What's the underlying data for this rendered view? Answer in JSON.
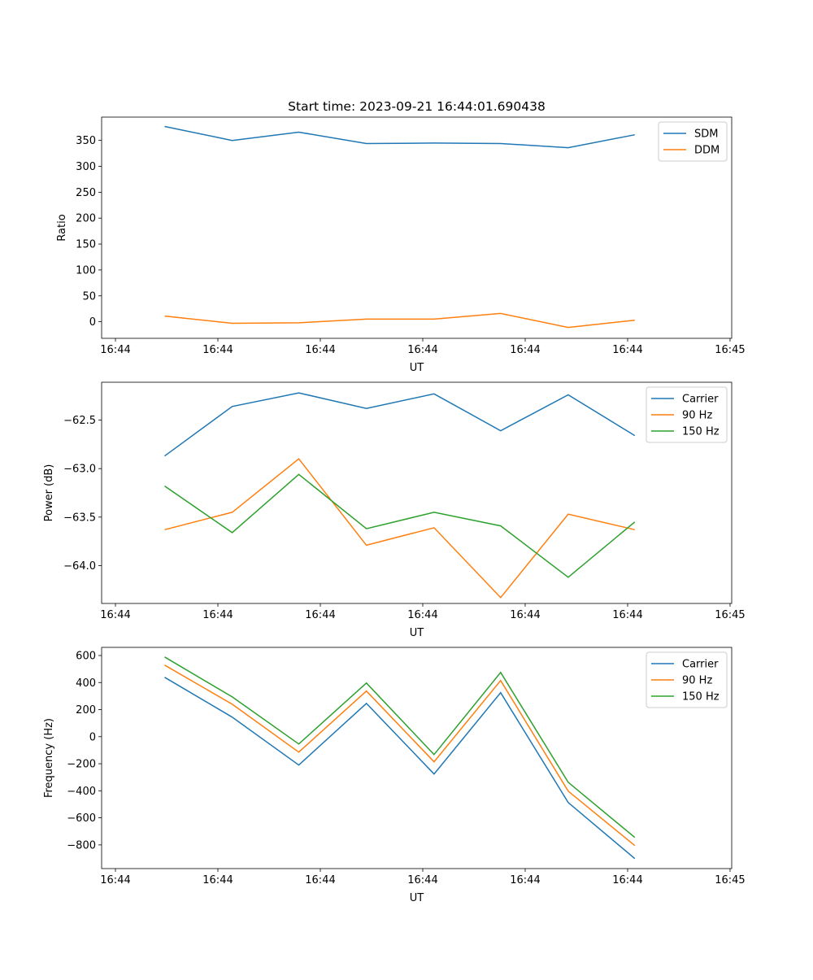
{
  "chart_data": [
    {
      "type": "line",
      "title": "Start time: 2023-09-21 16:44:01.690438",
      "xlabel": "UT",
      "ylabel": "Ratio",
      "x_ticks": [
        0,
        1,
        2,
        3,
        4,
        5,
        6
      ],
      "x_tick_labels": [
        "16:44",
        "16:44",
        "16:44",
        "16:44",
        "16:44",
        "16:44",
        "16:45"
      ],
      "xlim": [
        -0.135,
        6.016
      ],
      "ylim": [
        -32,
        395
      ],
      "y_ticks": [
        0,
        50,
        100,
        150,
        200,
        250,
        300,
        350
      ],
      "x": [
        0.48,
        1.14,
        1.79,
        2.45,
        3.11,
        3.76,
        4.42,
        5.07
      ],
      "legend": "top-right",
      "series": [
        {
          "name": "SDM",
          "color": "#1f77b4",
          "values": [
            377,
            350,
            366,
            344,
            345,
            344,
            336,
            361
          ]
        },
        {
          "name": "DDM",
          "color": "#ff7f0e",
          "values": [
            11,
            -3,
            -2,
            5,
            5,
            16,
            -11,
            3
          ]
        }
      ]
    },
    {
      "type": "line",
      "title": "",
      "xlabel": "UT",
      "ylabel": "Power (dB)",
      "x_ticks": [
        0,
        1,
        2,
        3,
        4,
        5,
        6
      ],
      "x_tick_labels": [
        "16:44",
        "16:44",
        "16:44",
        "16:44",
        "16:44",
        "16:44",
        "16:45"
      ],
      "xlim": [
        -0.135,
        6.016
      ],
      "ylim": [
        -64.39,
        -62.11
      ],
      "y_ticks": [
        -64.0,
        -63.5,
        -63.0,
        -62.5
      ],
      "y_tick_labels": [
        "−64.0",
        "−63.5",
        "−63.0",
        "−62.5"
      ],
      "x": [
        0.48,
        1.14,
        1.79,
        2.45,
        3.11,
        3.76,
        4.42,
        5.07
      ],
      "legend": "top-right",
      "series": [
        {
          "name": "Carrier",
          "color": "#1f77b4",
          "values": [
            -62.87,
            -62.36,
            -62.22,
            -62.38,
            -62.23,
            -62.61,
            -62.24,
            -62.66
          ]
        },
        {
          "name": "90 Hz",
          "color": "#ff7f0e",
          "values": [
            -63.63,
            -63.45,
            -62.9,
            -63.79,
            -63.61,
            -64.33,
            -63.47,
            -63.63
          ]
        },
        {
          "name": "150 Hz",
          "color": "#2ca02c",
          "values": [
            -63.18,
            -63.66,
            -63.06,
            -63.62,
            -63.45,
            -63.59,
            -64.12,
            -63.55
          ]
        }
      ]
    },
    {
      "type": "line",
      "title": "",
      "xlabel": "UT",
      "ylabel": "Frequency (Hz)",
      "x_ticks": [
        0,
        1,
        2,
        3,
        4,
        5,
        6
      ],
      "x_tick_labels": [
        "16:44",
        "16:44",
        "16:44",
        "16:44",
        "16:44",
        "16:44",
        "16:45"
      ],
      "xlim": [
        -0.135,
        6.016
      ],
      "ylim": [
        -975,
        660
      ],
      "y_ticks": [
        -800,
        -600,
        -400,
        -200,
        0,
        200,
        400,
        600
      ],
      "y_tick_labels": [
        "−800",
        "−600",
        "−400",
        "−200",
        "0",
        "200",
        "400",
        "600"
      ],
      "x": [
        0.48,
        1.14,
        1.79,
        2.45,
        3.11,
        3.76,
        4.42,
        5.07
      ],
      "legend": "top-right",
      "series": [
        {
          "name": "Carrier",
          "color": "#1f77b4",
          "values": [
            439,
            144,
            -210,
            246,
            -276,
            325,
            -487,
            -901
          ]
        },
        {
          "name": "90 Hz",
          "color": "#ff7f0e",
          "values": [
            529,
            240,
            -114,
            337,
            -186,
            415,
            -403,
            -805
          ]
        },
        {
          "name": "150 Hz",
          "color": "#2ca02c",
          "values": [
            589,
            294,
            -54,
            397,
            -132,
            475,
            -337,
            -745
          ]
        }
      ]
    }
  ]
}
